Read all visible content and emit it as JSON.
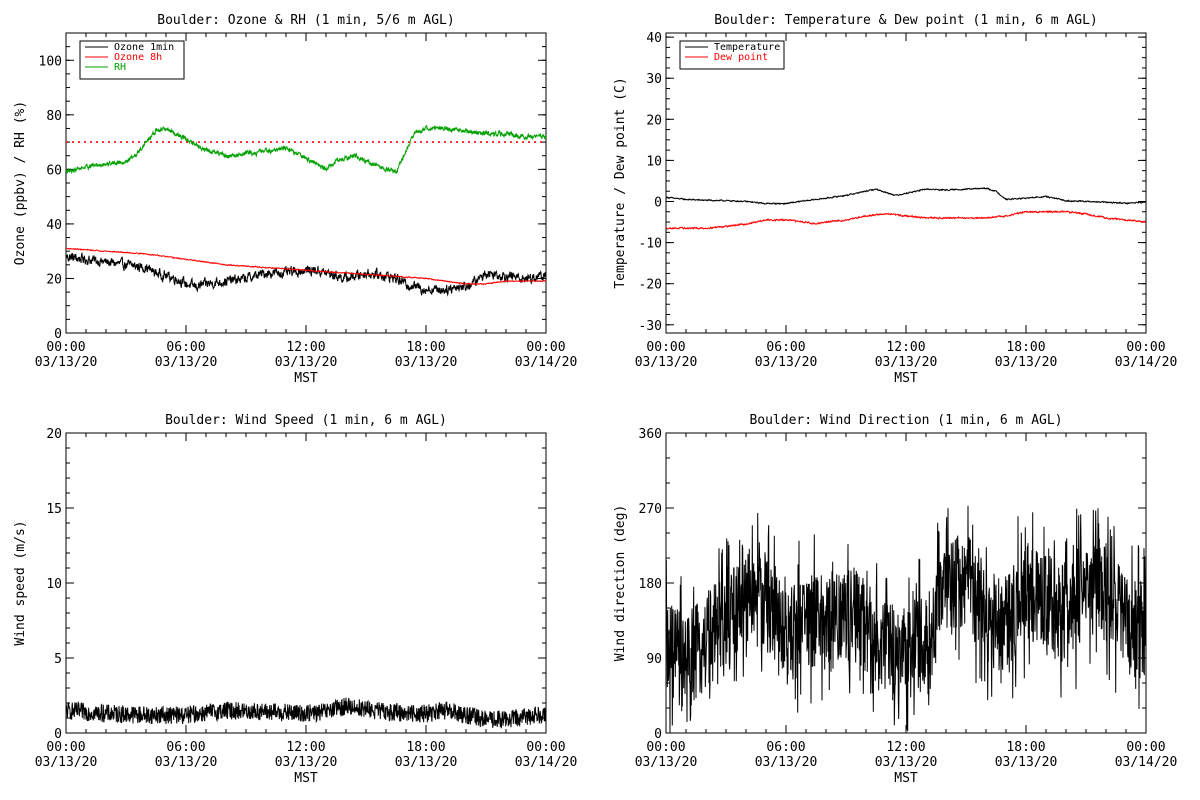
{
  "chart_data": [
    {
      "type": "line",
      "title": "Boulder: Ozone & RH (1 min, 5/6 m AGL)",
      "ylabel": "Ozone (ppbv) / RH (%)",
      "xlabel": "MST",
      "xlim": [
        0,
        24
      ],
      "ylim": [
        0,
        110
      ],
      "x_ticks": [
        {
          "x": 0,
          "time": "00:00",
          "date": "03/13/20"
        },
        {
          "x": 6,
          "time": "06:00",
          "date": "03/13/20"
        },
        {
          "x": 12,
          "time": "12:00",
          "date": "03/13/20"
        },
        {
          "x": 18,
          "time": "18:00",
          "date": "03/13/20"
        },
        {
          "x": 24,
          "time": "00:00",
          "date": "03/14/20"
        }
      ],
      "y_ticks": [
        0,
        20,
        40,
        60,
        80,
        100
      ],
      "legend": "top-left",
      "series": [
        {
          "name": "Ozone 1min",
          "color": "#000000",
          "noise": 1.5,
          "x": [
            0,
            1,
            2,
            3,
            4,
            4.5,
            5,
            5.5,
            6,
            6.5,
            7,
            8,
            9,
            10,
            11,
            12,
            12.5,
            13,
            13.5,
            14,
            14.5,
            15,
            16,
            16.5,
            17,
            17.5,
            18,
            19,
            19.5,
            20,
            20.5,
            21,
            22,
            23,
            24
          ],
          "y": [
            28,
            27,
            26,
            25,
            24,
            22,
            21,
            20,
            18,
            17,
            18,
            19,
            20,
            22,
            22,
            23,
            23,
            22,
            21,
            20,
            21,
            22,
            21,
            20,
            18,
            17,
            16,
            16,
            17,
            17,
            19,
            22,
            21,
            20,
            21
          ]
        },
        {
          "name": "Ozone 8h",
          "color": "#ff0000",
          "noise": 0.15,
          "x": [
            0,
            2,
            4,
            6,
            8,
            10,
            12,
            14,
            16,
            18,
            19,
            20,
            21,
            22,
            24
          ],
          "y": [
            31,
            30,
            29,
            27,
            25,
            24,
            23,
            22,
            21,
            20,
            19,
            18,
            18,
            19,
            19
          ]
        },
        {
          "name": "RH",
          "color": "#00a000",
          "noise": 0.7,
          "x": [
            0,
            0.5,
            1,
            2,
            3,
            3.5,
            4,
            4.5,
            5,
            5.5,
            6,
            6.5,
            7,
            7.5,
            8,
            8.5,
            9,
            9.5,
            10,
            10.5,
            11,
            11.5,
            12,
            12.5,
            13,
            13.5,
            14,
            14.5,
            15,
            16,
            16.5,
            17,
            17.5,
            18,
            19,
            20,
            21,
            22,
            23,
            24
          ],
          "y": [
            59,
            60,
            61,
            62,
            63,
            65,
            70,
            74,
            75,
            73,
            71,
            69,
            67,
            66,
            65,
            65,
            66,
            66,
            67,
            67,
            68,
            66,
            64,
            62,
            60,
            63,
            64,
            65,
            63,
            60,
            59,
            67,
            74,
            75,
            75,
            74,
            73,
            73,
            72,
            72
          ]
        }
      ],
      "reference_lines": [
        {
          "y": 70,
          "color": "#ff0000",
          "style": "dotted"
        }
      ]
    },
    {
      "type": "line",
      "title": "Boulder: Temperature & Dew point (1 min, 6 m AGL)",
      "ylabel": "Temperature / Dew point (C)",
      "xlabel": "MST",
      "xlim": [
        0,
        24
      ],
      "ylim": [
        -32,
        41
      ],
      "x_ticks": [
        {
          "x": 0,
          "time": "00:00",
          "date": "03/13/20"
        },
        {
          "x": 6,
          "time": "06:00",
          "date": "03/13/20"
        },
        {
          "x": 12,
          "time": "12:00",
          "date": "03/13/20"
        },
        {
          "x": 18,
          "time": "18:00",
          "date": "03/13/20"
        },
        {
          "x": 24,
          "time": "00:00",
          "date": "03/14/20"
        }
      ],
      "y_ticks": [
        -30,
        -20,
        -10,
        0,
        10,
        20,
        30,
        40
      ],
      "legend": "top-left",
      "series": [
        {
          "name": "Temperature",
          "color": "#000000",
          "noise": 0.12,
          "x": [
            0,
            1,
            2,
            3,
            4,
            5,
            6,
            7,
            8,
            9,
            10,
            10.5,
            11,
            11.5,
            12,
            13,
            14,
            15,
            16,
            16.5,
            17,
            18,
            19,
            20,
            21,
            22,
            23,
            24
          ],
          "y": [
            1,
            0.5,
            0.3,
            0.2,
            0,
            -0.5,
            -0.5,
            0.2,
            0.8,
            1.5,
            2.5,
            3,
            2.2,
            1.5,
            2,
            3,
            2.8,
            3,
            3.2,
            2.5,
            0.5,
            0.8,
            1.2,
            0.2,
            0,
            -0.2,
            -0.4,
            -0.2
          ]
        },
        {
          "name": "Dew point",
          "color": "#ff0000",
          "noise": 0.15,
          "x": [
            0,
            2,
            3,
            4,
            5,
            6,
            7,
            7.5,
            8,
            9,
            10,
            11,
            12,
            13,
            14,
            15,
            16,
            17,
            18,
            19,
            20,
            21,
            22,
            23,
            24
          ],
          "y": [
            -6.5,
            -6.5,
            -6,
            -5.5,
            -4.5,
            -4.5,
            -5,
            -5.5,
            -5,
            -4.5,
            -3.5,
            -3,
            -3.5,
            -4,
            -4,
            -4,
            -4,
            -3.5,
            -2.5,
            -2.5,
            -2.5,
            -3,
            -4,
            -4.5,
            -5
          ]
        }
      ]
    },
    {
      "type": "line",
      "title": "Boulder: Wind Speed (1 min, 6 m AGL)",
      "ylabel": "Wind speed (m/s)",
      "xlabel": "MST",
      "xlim": [
        0,
        24
      ],
      "ylim": [
        0,
        20
      ],
      "x_ticks": [
        {
          "x": 0,
          "time": "00:00",
          "date": "03/13/20"
        },
        {
          "x": 6,
          "time": "06:00",
          "date": "03/13/20"
        },
        {
          "x": 12,
          "time": "12:00",
          "date": "03/13/20"
        },
        {
          "x": 18,
          "time": "18:00",
          "date": "03/13/20"
        },
        {
          "x": 24,
          "time": "00:00",
          "date": "03/14/20"
        }
      ],
      "y_ticks": [
        0,
        5,
        10,
        15,
        20
      ],
      "series": [
        {
          "name": "",
          "color": "#000000",
          "noise": 0.6,
          "x": [
            0,
            2,
            4,
            6,
            8,
            10,
            12,
            13,
            14,
            15,
            16,
            18,
            19,
            20,
            21,
            22,
            24
          ],
          "y": [
            1.5,
            1.3,
            1.2,
            1.2,
            1.5,
            1.4,
            1.3,
            1.4,
            1.8,
            1.6,
            1.4,
            1.3,
            1.5,
            1.2,
            0.9,
            0.9,
            1.3
          ]
        }
      ]
    },
    {
      "type": "line",
      "title": "Boulder: Wind Direction (1 min, 6 m AGL)",
      "ylabel": "Wind direction (deg)",
      "xlabel": "MST",
      "xlim": [
        0,
        24
      ],
      "ylim": [
        0,
        360
      ],
      "x_ticks": [
        {
          "x": 0,
          "time": "00:00",
          "date": "03/13/20"
        },
        {
          "x": 6,
          "time": "06:00",
          "date": "03/13/20"
        },
        {
          "x": 12,
          "time": "12:00",
          "date": "03/13/20"
        },
        {
          "x": 18,
          "time": "18:00",
          "date": "03/13/20"
        },
        {
          "x": 24,
          "time": "00:00",
          "date": "03/14/20"
        }
      ],
      "y_ticks": [
        0,
        90,
        180,
        270,
        360
      ],
      "series": [
        {
          "name": "",
          "color": "#000000",
          "noise": 60,
          "x": [
            0,
            1,
            2,
            3,
            4,
            5,
            6,
            7,
            8,
            9,
            10,
            11,
            12,
            13,
            14,
            15,
            16,
            17,
            18,
            19,
            20,
            21,
            22,
            23,
            24
          ],
          "y": [
            100,
            80,
            110,
            130,
            170,
            160,
            110,
            140,
            130,
            140,
            130,
            100,
            95,
            110,
            170,
            190,
            140,
            130,
            170,
            160,
            140,
            180,
            170,
            130,
            120
          ]
        }
      ]
    }
  ]
}
